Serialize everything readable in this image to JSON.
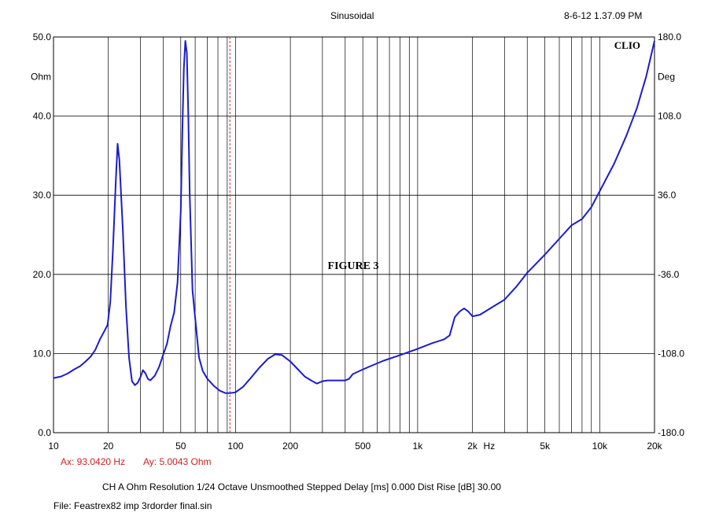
{
  "header": {
    "title": "Sinusoidal",
    "timestamp": "8-6-12 1.37.09 PM",
    "brand": "CLIO"
  },
  "chart_data": {
    "type": "line",
    "title": "FIGURE 3",
    "x_scale": "log",
    "xlim": [
      10,
      20000
    ],
    "ylim": [
      0,
      50
    ],
    "y2lim": [
      -180,
      180
    ],
    "grid": true,
    "y_unit": "Ohm",
    "y2_unit": "Deg",
    "x_unit": "Hz",
    "x_ticks": [
      {
        "value": 10,
        "label": "10"
      },
      {
        "value": 20,
        "label": "20"
      },
      {
        "value": 50,
        "label": "50"
      },
      {
        "value": 100,
        "label": "100"
      },
      {
        "value": 200,
        "label": "200"
      },
      {
        "value": 500,
        "label": "500"
      },
      {
        "value": 1000,
        "label": "1k"
      },
      {
        "value": 2000,
        "label": "2k"
      },
      {
        "value": 5000,
        "label": "5k"
      },
      {
        "value": 10000,
        "label": "10k"
      },
      {
        "value": 20000,
        "label": "20k"
      }
    ],
    "y_ticks": [
      {
        "value": 0,
        "label": "0.0"
      },
      {
        "value": 10,
        "label": "10.0"
      },
      {
        "value": 20,
        "label": "20.0"
      },
      {
        "value": 30,
        "label": "30.0"
      },
      {
        "value": 40,
        "label": "40.0"
      },
      {
        "value": 50,
        "label": "50.0"
      }
    ],
    "y2_ticks": [
      {
        "value": -180,
        "label": "-180.0"
      },
      {
        "value": -108,
        "label": "-108.0"
      },
      {
        "value": -36,
        "label": "-36.0"
      },
      {
        "value": 36,
        "label": "36.0"
      },
      {
        "value": 108,
        "label": "108.0"
      },
      {
        "value": 180,
        "label": "180.0"
      }
    ],
    "cursor_x": 93.042,
    "series": [
      {
        "color": "#1c1ccc",
        "points": [
          [
            10,
            6.9
          ],
          [
            11,
            7.1
          ],
          [
            12,
            7.5
          ],
          [
            13,
            8.0
          ],
          [
            14,
            8.4
          ],
          [
            15,
            9.0
          ],
          [
            16,
            9.6
          ],
          [
            17,
            10.5
          ],
          [
            18,
            11.8
          ],
          [
            19,
            12.8
          ],
          [
            19.8,
            13.6
          ],
          [
            20.5,
            16.5
          ],
          [
            21.2,
            23
          ],
          [
            22,
            32
          ],
          [
            22.5,
            36.5
          ],
          [
            23,
            34.5
          ],
          [
            24,
            26
          ],
          [
            25,
            16
          ],
          [
            26,
            9.5
          ],
          [
            27,
            6.5
          ],
          [
            28,
            6.0
          ],
          [
            29,
            6.3
          ],
          [
            30,
            7.0
          ],
          [
            31,
            7.9
          ],
          [
            32,
            7.5
          ],
          [
            33,
            6.8
          ],
          [
            34,
            6.6
          ],
          [
            36,
            7.2
          ],
          [
            38,
            8.3
          ],
          [
            40,
            9.8
          ],
          [
            42,
            11.2
          ],
          [
            44,
            13.5
          ],
          [
            46,
            15.2
          ],
          [
            48,
            19
          ],
          [
            50,
            28
          ],
          [
            51,
            38
          ],
          [
            52,
            46
          ],
          [
            53,
            49.5
          ],
          [
            54,
            48
          ],
          [
            55,
            40
          ],
          [
            56,
            30
          ],
          [
            58,
            18
          ],
          [
            60,
            14.5
          ],
          [
            63,
            9.5
          ],
          [
            66,
            7.8
          ],
          [
            70,
            6.8
          ],
          [
            76,
            5.9
          ],
          [
            82,
            5.3
          ],
          [
            88,
            5.0
          ],
          [
            93,
            5.0
          ],
          [
            100,
            5.1
          ],
          [
            110,
            5.8
          ],
          [
            120,
            6.8
          ],
          [
            135,
            8.2
          ],
          [
            150,
            9.3
          ],
          [
            165,
            9.9
          ],
          [
            180,
            9.8
          ],
          [
            200,
            9.0
          ],
          [
            220,
            8.0
          ],
          [
            240,
            7.1
          ],
          [
            260,
            6.6
          ],
          [
            280,
            6.2
          ],
          [
            300,
            6.5
          ],
          [
            320,
            6.6
          ],
          [
            350,
            6.6
          ],
          [
            380,
            6.6
          ],
          [
            400,
            6.6
          ],
          [
            420,
            6.8
          ],
          [
            440,
            7.4
          ],
          [
            480,
            7.8
          ],
          [
            550,
            8.4
          ],
          [
            650,
            9.1
          ],
          [
            800,
            9.8
          ],
          [
            1000,
            10.6
          ],
          [
            1200,
            11.3
          ],
          [
            1400,
            11.8
          ],
          [
            1500,
            12.3
          ],
          [
            1600,
            14.6
          ],
          [
            1700,
            15.3
          ],
          [
            1800,
            15.7
          ],
          [
            1900,
            15.3
          ],
          [
            2000,
            14.7
          ],
          [
            2200,
            14.9
          ],
          [
            2500,
            15.7
          ],
          [
            3000,
            16.8
          ],
          [
            3500,
            18.5
          ],
          [
            4000,
            20.2
          ],
          [
            5000,
            22.5
          ],
          [
            6000,
            24.5
          ],
          [
            7000,
            26.2
          ],
          [
            8000,
            27.0
          ],
          [
            9000,
            28.5
          ],
          [
            10000,
            30.5
          ],
          [
            12000,
            34.0
          ],
          [
            14000,
            37.5
          ],
          [
            16000,
            41.0
          ],
          [
            18000,
            45.0
          ],
          [
            20000,
            49.5
          ]
        ]
      }
    ]
  },
  "cursor_readout": {
    "ax": "Ax: 93.0420 Hz",
    "ay": "Ay: 5.0043 Ohm"
  },
  "footer": {
    "settings": "CH A   Ohm   Resolution 1/24 Octave   Unsmoothed   Stepped   Delay [ms] 0.000   Dist Rise [dB] 30.00",
    "file": "File: Feastrex82 imp 3rdorder final.sin"
  },
  "colors": {
    "curve": "#1c1ccc",
    "cursor": "#cc2222",
    "grid": "#000000",
    "readout": "#cc2222"
  }
}
